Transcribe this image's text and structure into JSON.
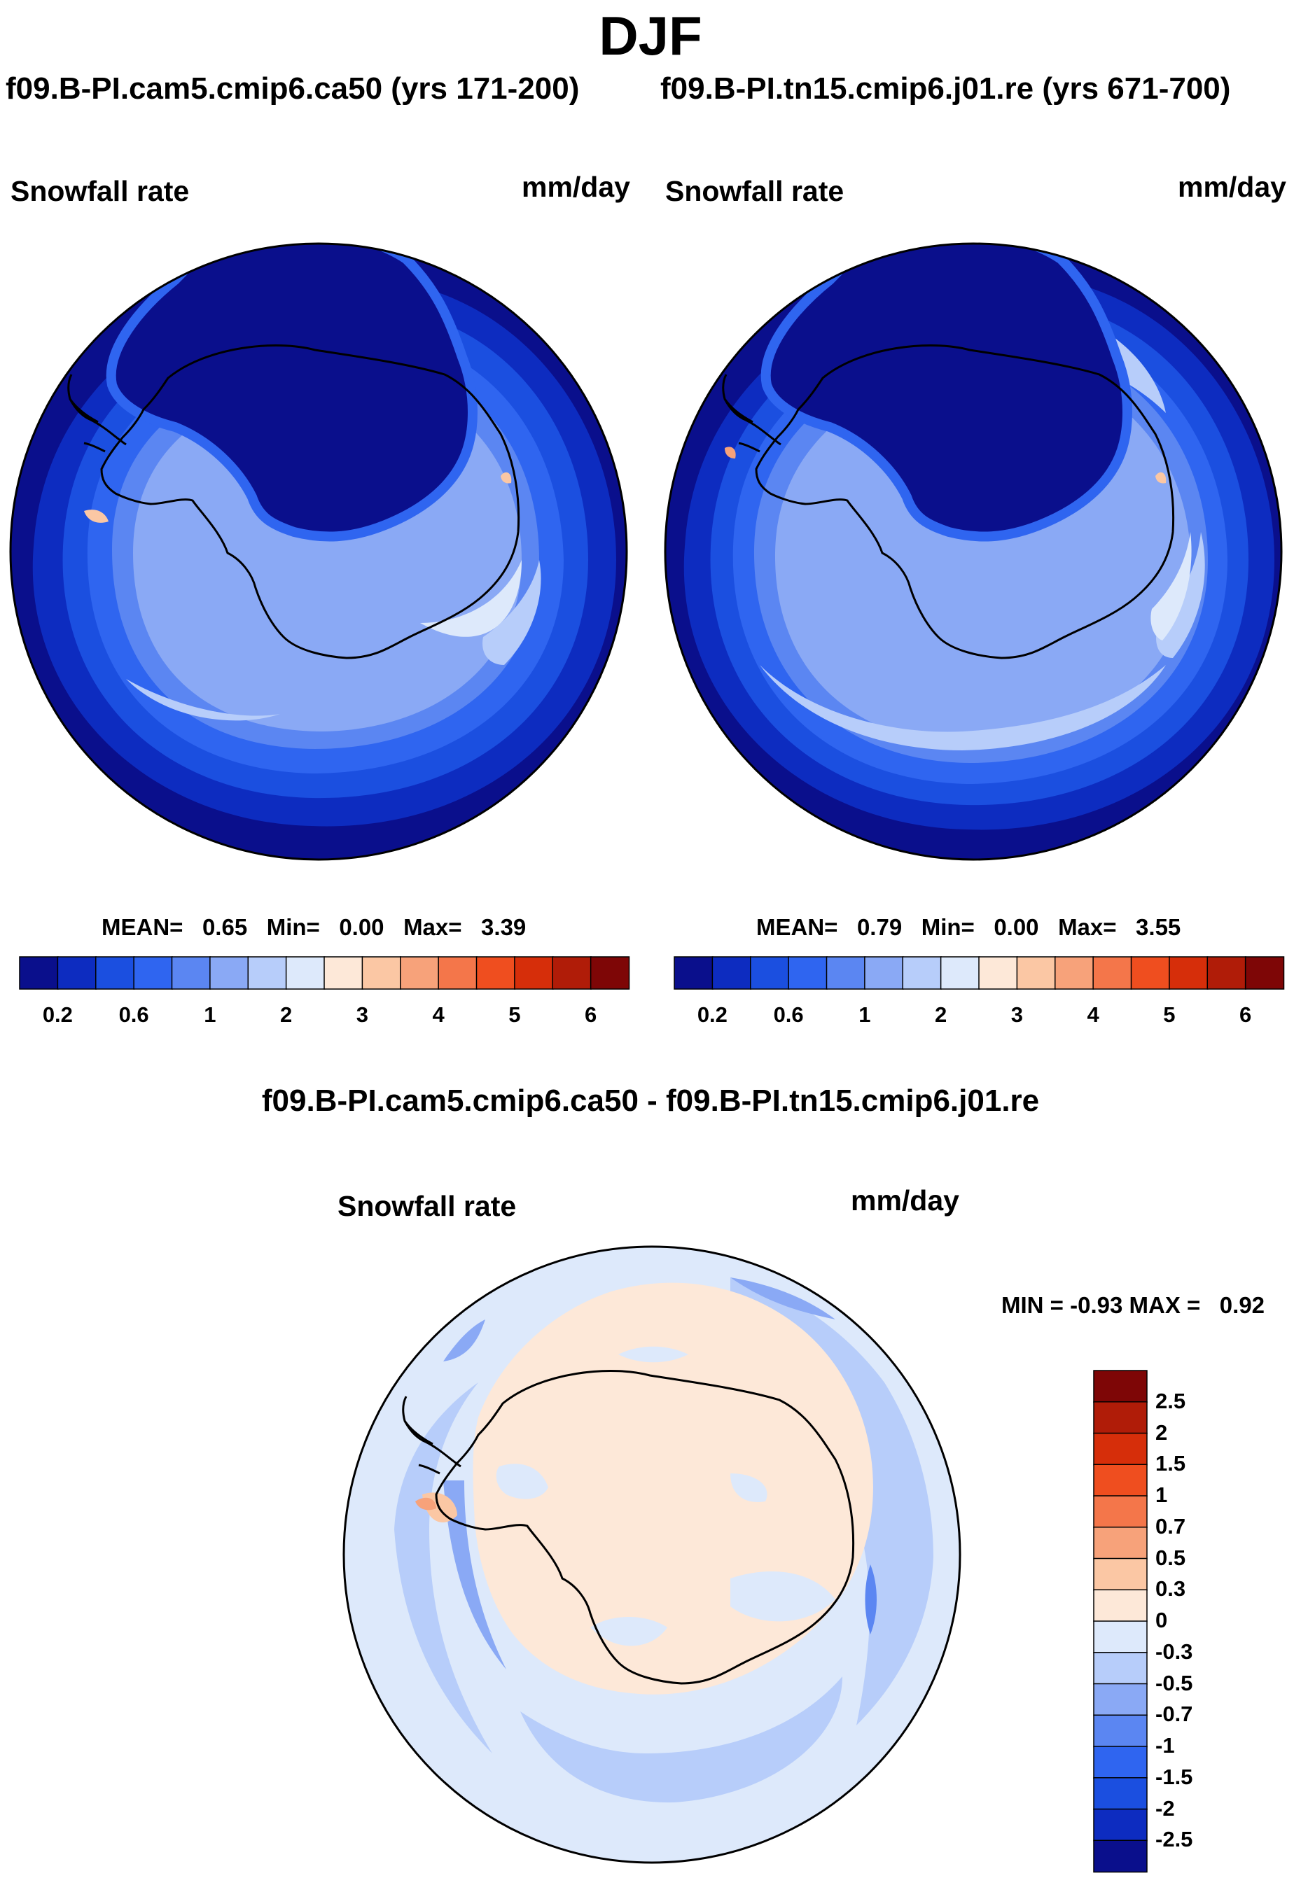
{
  "title": "DJF",
  "chart_data": [
    {
      "type": "heatmap",
      "projection": "south polar stereographic",
      "title": "f09.B-PI.cam5.cmip6.ca50 (yrs 171-200)",
      "variable": "Snowfall rate",
      "units": "mm/day",
      "stats": {
        "mean_label": "MEAN=",
        "mean": "0.65",
        "min_label": "Min=",
        "min": "0.00",
        "max_label": "Max=",
        "max": "3.39"
      },
      "colorbar_ticks": [
        "0.2",
        "0.6",
        "1",
        "2",
        "3",
        "4",
        "5",
        "6"
      ],
      "colorbar_levels": [
        0.1,
        0.2,
        0.4,
        0.6,
        0.8,
        1,
        1.5,
        2,
        2.5,
        3,
        3.5,
        4,
        4.5,
        5,
        5.5,
        6
      ]
    },
    {
      "type": "heatmap",
      "projection": "south polar stereographic",
      "title": "f09.B-PI.tn15.cmip6.j01.re (yrs 671-700)",
      "variable": "Snowfall rate",
      "units": "mm/day",
      "stats": {
        "mean_label": "MEAN=",
        "mean": "0.79",
        "min_label": "Min=",
        "min": "0.00",
        "max_label": "Max=",
        "max": "3.55"
      },
      "colorbar_ticks": [
        "0.2",
        "0.6",
        "1",
        "2",
        "3",
        "4",
        "5",
        "6"
      ],
      "colorbar_levels": [
        0.1,
        0.2,
        0.4,
        0.6,
        0.8,
        1,
        1.5,
        2,
        2.5,
        3,
        3.5,
        4,
        4.5,
        5,
        5.5,
        6
      ]
    },
    {
      "type": "heatmap",
      "projection": "south polar stereographic",
      "title": "f09.B-PI.cam5.cmip6.ca50 - f09.B-PI.tn15.cmip6.j01.re",
      "variable": "Snowfall rate",
      "units": "mm/day",
      "stats": {
        "min_label": "MIN =",
        "min": "-0.93",
        "max_label": "MAX =",
        "max": "0.92"
      },
      "colorbar_ticks": [
        "2.5",
        "2",
        "1.5",
        "1",
        "0.7",
        "0.5",
        "0.3",
        "0",
        "-0.3",
        "-0.5",
        "-0.7",
        "-1",
        "-1.5",
        "-2",
        "-2.5"
      ]
    }
  ],
  "colors": {
    "seq": [
      "#0a0f8c",
      "#0d2cc0",
      "#1b4fe0",
      "#2f65f0",
      "#5b86f2",
      "#8aa9f5",
      "#b7cdfa",
      "#dde9fb",
      "#fde8d8",
      "#fbc7a4",
      "#f7a27a",
      "#f4764a",
      "#ef4e1f",
      "#d62e0a",
      "#b01c08",
      "#7e0606"
    ],
    "div": [
      "#7e0606",
      "#b01c08",
      "#d62e0a",
      "#ef4e1f",
      "#f4764a",
      "#f7a27a",
      "#fbc7a4",
      "#fde8d8",
      "#dde9fb",
      "#b7cdfa",
      "#8aa9f5",
      "#5b86f2",
      "#2f65f0",
      "#1b4fe0",
      "#0d2cc0",
      "#0a0f8c"
    ],
    "deep_blue": "#0a0f8c",
    "light_orange": "#fde8d8"
  }
}
